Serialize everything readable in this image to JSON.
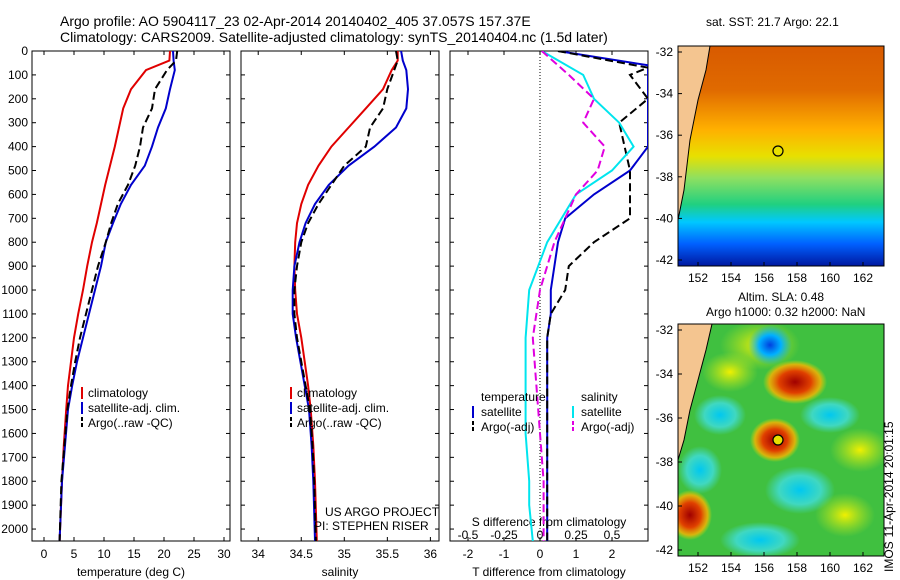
{
  "header": {
    "line1": "Argo profile: AO 5904117_23 02-Apr-2014 20140402_405 37.057S 157.37E",
    "line2": "Climatology: CARS2009. Satellite-adjusted climatology: synTS_20140404.nc (1.5d later)"
  },
  "colors": {
    "climatology": "#e00000",
    "satellite": "#0000cc",
    "argo": "#000000",
    "cyan": "#00e5ee",
    "magenta": "#e000e0"
  },
  "chart_data": [
    {
      "type": "line",
      "id": "temperature",
      "xlabel": "temperature (deg C)",
      "ylabel": "",
      "xlim": [
        -2,
        31
      ],
      "ylim": [
        2050,
        0
      ],
      "xticks": [
        0,
        5,
        10,
        15,
        20,
        25,
        30
      ],
      "yticks": [
        0,
        100,
        200,
        300,
        400,
        500,
        600,
        700,
        800,
        900,
        1000,
        1100,
        1200,
        1300,
        1400,
        1500,
        1600,
        1700,
        1800,
        1900,
        2000
      ],
      "legend": [
        "climatology",
        "satellite-adj. clim.",
        "Argo(..raw -QC)"
      ],
      "series": [
        {
          "name": "climatology",
          "color": "red",
          "x": [
            21.0,
            20.9,
            17.0,
            14.5,
            13.2,
            12.5,
            11.8,
            11.0,
            10.2,
            9.5,
            8.8,
            8.0,
            7.2,
            6.5,
            5.7,
            5.0,
            4.5,
            4.0,
            3.7,
            3.3,
            3.0,
            2.6
          ],
          "y": [
            0,
            40,
            80,
            160,
            240,
            320,
            400,
            480,
            560,
            640,
            720,
            800,
            900,
            1000,
            1100,
            1200,
            1300,
            1400,
            1500,
            1650,
            1800,
            2050
          ]
        },
        {
          "name": "satellite-adj. clim.",
          "color": "blue",
          "x": [
            21.5,
            21.6,
            21.8,
            21.0,
            20.3,
            19.0,
            18.0,
            16.8,
            14.5,
            12.8,
            11.5,
            10.3,
            9.5,
            8.5,
            7.5,
            6.5,
            5.5,
            4.7,
            4.0,
            3.5,
            3.0,
            2.6
          ],
          "y": [
            0,
            40,
            80,
            160,
            240,
            320,
            400,
            480,
            560,
            640,
            720,
            800,
            900,
            1000,
            1100,
            1200,
            1300,
            1400,
            1500,
            1650,
            1800,
            2050
          ]
        },
        {
          "name": "Argo(..raw -QC)",
          "color": "black",
          "x": [
            22.2,
            22.0,
            20.5,
            18.5,
            18.0,
            16.5,
            16.0,
            15.2,
            14.0,
            12.3,
            11.2,
            10.3,
            9.0,
            8.0,
            7.0,
            6.0,
            5.2,
            4.5,
            3.9,
            3.4,
            2.9,
            2.6
          ],
          "y": [
            0,
            40,
            80,
            160,
            240,
            320,
            400,
            480,
            560,
            640,
            720,
            800,
            900,
            1000,
            1100,
            1200,
            1300,
            1400,
            1500,
            1650,
            1800,
            2050
          ]
        }
      ]
    },
    {
      "type": "line",
      "id": "salinity",
      "xlabel": "salinity",
      "ylabel": "",
      "xlim": [
        33.8,
        36.1
      ],
      "ylim": [
        2050,
        0
      ],
      "xticks": [
        34,
        34.5,
        35,
        35.5,
        36
      ],
      "legend": [
        "climatology",
        "satellite-adj. clim.",
        "Argo(..raw -QC)"
      ],
      "series": [
        {
          "name": "climatology",
          "color": "red",
          "x": [
            35.62,
            35.62,
            35.55,
            35.45,
            35.25,
            35.05,
            34.85,
            34.7,
            34.58,
            34.5,
            34.45,
            34.43,
            34.42,
            34.43,
            34.45,
            34.5,
            34.54,
            34.58,
            34.61,
            34.64,
            34.66,
            34.68
          ],
          "y": [
            0,
            40,
            80,
            160,
            240,
            320,
            400,
            480,
            560,
            640,
            720,
            800,
            900,
            1000,
            1100,
            1200,
            1300,
            1400,
            1500,
            1650,
            1800,
            2050
          ]
        },
        {
          "name": "satellite-adj. clim.",
          "color": "blue",
          "x": [
            35.66,
            35.68,
            35.72,
            35.74,
            35.72,
            35.6,
            35.35,
            35.05,
            34.82,
            34.66,
            34.55,
            34.48,
            34.42,
            34.4,
            34.4,
            34.44,
            34.49,
            34.54,
            34.59,
            34.62,
            34.64,
            34.66
          ],
          "y": [
            0,
            40,
            80,
            160,
            240,
            320,
            400,
            480,
            560,
            640,
            720,
            800,
            900,
            1000,
            1100,
            1200,
            1300,
            1400,
            1500,
            1650,
            1800,
            2050
          ]
        },
        {
          "name": "Argo(..raw -QC)",
          "color": "black",
          "x": [
            35.6,
            35.62,
            35.58,
            35.5,
            35.45,
            35.3,
            35.25,
            35.0,
            34.85,
            34.7,
            34.58,
            34.5,
            34.45,
            34.42,
            34.42,
            34.45,
            34.5,
            34.55,
            34.6,
            34.63,
            34.65,
            34.67
          ],
          "y": [
            0,
            40,
            80,
            160,
            240,
            320,
            400,
            480,
            560,
            640,
            720,
            800,
            900,
            1000,
            1100,
            1200,
            1300,
            1400,
            1500,
            1650,
            1800,
            2050
          ]
        }
      ]
    },
    {
      "type": "line",
      "id": "difference",
      "xlabel": "T difference from climatology",
      "xlabel_top": "S difference from climatology",
      "xlim": [
        -2.5,
        3.0
      ],
      "ylim": [
        2050,
        0
      ],
      "xticks": [
        -2,
        -1,
        0,
        1,
        2
      ],
      "s_ticks": [
        "-0.5",
        "-0.25",
        "0",
        "0.25",
        "0.5"
      ],
      "legend_temperature": {
        "title": "temperature",
        "items": [
          "satellite",
          "Argo(-adj)"
        ]
      },
      "legend_salinity": {
        "title": "salinity",
        "items": [
          "satellite",
          "Argo(-adj)"
        ]
      },
      "series": [
        {
          "name": "temperature satellite",
          "color": "blue",
          "x": [
            0.5,
            3.0,
            3.0,
            3.0,
            3.0,
            3.0,
            2.5,
            1.5,
            0.7,
            0.5,
            0.4,
            0.3,
            0.3,
            0.2,
            0.2,
            0.2,
            0.2,
            0.2,
            0.2
          ],
          "y": [
            0,
            60,
            80,
            150,
            250,
            400,
            500,
            600,
            700,
            800,
            900,
            1000,
            1100,
            1200,
            1300,
            1500,
            1700,
            1900,
            2050
          ]
        },
        {
          "name": "temperature Argo(-adj)",
          "color": "black",
          "x": [
            0.5,
            3.0,
            2.5,
            3.0,
            2.2,
            2.5,
            2.5,
            2.5,
            2.5,
            1.5,
            0.8,
            0.7,
            0.3,
            0.2,
            0.2,
            0.2,
            0.2,
            0.2
          ],
          "y": [
            0,
            70,
            100,
            200,
            300,
            500,
            600,
            650,
            700,
            800,
            900,
            1000,
            1100,
            1200,
            1400,
            1600,
            1800,
            2050
          ]
        },
        {
          "name": "salinity satellite",
          "color": "cyan",
          "x": [
            0.05,
            1.2,
            1.5,
            2.2,
            2.6,
            2.0,
            1.0,
            0.2,
            -0.3,
            -0.4,
            -0.4,
            -0.4,
            -0.3,
            -0.3,
            -0.2
          ],
          "y": [
            0,
            100,
            200,
            300,
            400,
            500,
            600,
            800,
            1000,
            1200,
            1400,
            1600,
            1800,
            1900,
            2050
          ]
        },
        {
          "name": "salinity Argo(-adj)",
          "color": "magenta",
          "x": [
            0.05,
            0.8,
            1.5,
            1.2,
            1.8,
            1.6,
            1.0,
            0.4,
            0.0,
            -0.2,
            -0.1,
            0.0,
            0.1,
            0.1
          ],
          "y": [
            0,
            100,
            200,
            300,
            400,
            500,
            600,
            800,
            1000,
            1200,
            1400,
            1600,
            1800,
            2050
          ]
        }
      ],
      "credit": [
        "US ARGO PROJECT",
        "PI: STEPHEN RISER"
      ]
    }
  ],
  "maps": {
    "sst_title": "sat. SST: 21.7 Argo: 22.1",
    "sla_title1": "Altim. SLA: 0.48",
    "sla_title2": "Argo h1000: 0.32 h2000: NaN",
    "lon_ticks": [
      "152",
      "154",
      "156",
      "158",
      "160",
      "162"
    ],
    "lat_ticks": [
      "-32",
      "-34",
      "-36",
      "-38",
      "-40",
      "-42"
    ]
  },
  "footer": {
    "timestamp": "11-Apr-2014 20:01:15",
    "logo": "IMOS"
  }
}
